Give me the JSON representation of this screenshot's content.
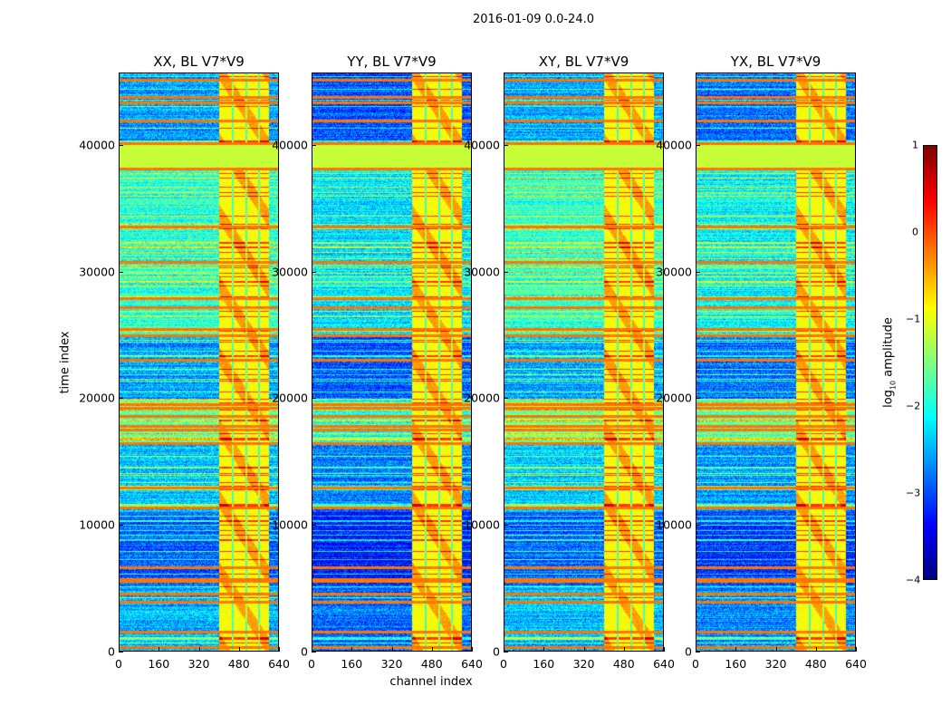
{
  "figure": {
    "suptitle": "2016-01-09 0.0-24.0",
    "xlabel": "channel index",
    "ylabel": "time index"
  },
  "chart_data": {
    "type": "heatmap",
    "panels": [
      {
        "title": "XX, BL V7*V9",
        "colorscale_shift": 0.0
      },
      {
        "title": "YY, BL V7*V9",
        "colorscale_shift": -0.35
      },
      {
        "title": "XY, BL V7*V9",
        "colorscale_shift": 0.05
      },
      {
        "title": "YX, BL V7*V9",
        "colorscale_shift": -0.2
      }
    ],
    "x_range": [
      0,
      640
    ],
    "y_range": [
      0,
      45700
    ],
    "x_ticks": [
      "0",
      "160",
      "320",
      "480",
      "640"
    ],
    "x_tick_values": [
      0,
      160,
      320,
      480,
      640
    ],
    "y_ticks": [
      "0",
      "10000",
      "20000",
      "30000",
      "40000"
    ],
    "y_tick_values": [
      0,
      10000,
      20000,
      30000,
      40000
    ],
    "colormap": "jet",
    "color_range": [
      -4,
      1
    ],
    "colorbar": {
      "label_main": "log",
      "label_sub": "10",
      "label_rest": " amplitude",
      "ticks": [
        "1",
        "0",
        "−1",
        "−2",
        "−3",
        "−4"
      ],
      "tick_values": [
        1,
        0,
        -1,
        -2,
        -3,
        -4
      ]
    },
    "flagged_block": {
      "time_start": 38300,
      "time_end": 40100,
      "value": -1.15
    },
    "bright_channels": {
      "start": 400,
      "end": 600,
      "value": -0.9,
      "gap_channels": [
        455,
        510,
        560
      ]
    },
    "background_segments": [
      {
        "t0": 0,
        "t1": 5200,
        "value": -2.5
      },
      {
        "t0": 5200,
        "t1": 11000,
        "value": -2.9
      },
      {
        "t0": 11000,
        "t1": 16500,
        "value": -2.4
      },
      {
        "t0": 16500,
        "t1": 20000,
        "value": -1.6
      },
      {
        "t0": 20000,
        "t1": 25000,
        "value": -2.6
      },
      {
        "t0": 25000,
        "t1": 38300,
        "value": -1.9
      },
      {
        "t0": 40100,
        "t1": 45700,
        "value": -2.6
      }
    ],
    "rfi_times": [
      300,
      1500,
      3900,
      4500,
      5500,
      5700,
      6600,
      11300,
      12900,
      16400,
      17500,
      17800,
      18600,
      19200,
      19500,
      23000,
      25000,
      25500,
      27200,
      27900,
      30800,
      33600,
      38200,
      40200,
      42000,
      43400,
      43800,
      45200
    ]
  }
}
